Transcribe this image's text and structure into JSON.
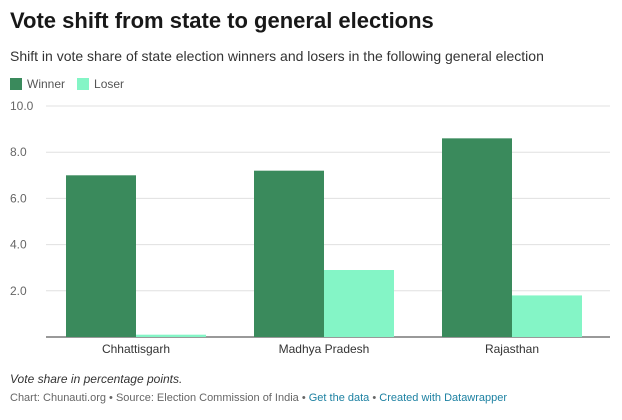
{
  "header": {
    "title": "Vote shift from state to general elections",
    "subtitle": "Shift in vote share of state election winners and losers in the following general election"
  },
  "chart_data": {
    "type": "bar",
    "categories": [
      "Chhattisgarh",
      "Madhya Pradesh",
      "Rajasthan"
    ],
    "series": [
      {
        "name": "Winner",
        "color": "#3a8a5c",
        "values": [
          7.0,
          7.2,
          8.6
        ]
      },
      {
        "name": "Loser",
        "color": "#84f5c6",
        "values": [
          0.1,
          2.9,
          1.8
        ]
      }
    ],
    "ylim": [
      0,
      10
    ],
    "yticks": [
      "10.0",
      "8.0",
      "6.0",
      "4.0",
      "2.0"
    ],
    "ytick_values": [
      10,
      8,
      6,
      4,
      2
    ],
    "grid": true
  },
  "legend": {
    "winner_label": "Winner",
    "loser_label": "Loser",
    "winner_color": "#3a8a5c",
    "loser_color": "#84f5c6"
  },
  "notes": {
    "text": "Vote share in percentage points."
  },
  "footer": {
    "chart_credit": "Chart: Chunauti.org",
    "separator": " • ",
    "source": "Source: Election Commission of India",
    "get_data": "Get the data",
    "created_with": "Created with Datawrapper"
  }
}
